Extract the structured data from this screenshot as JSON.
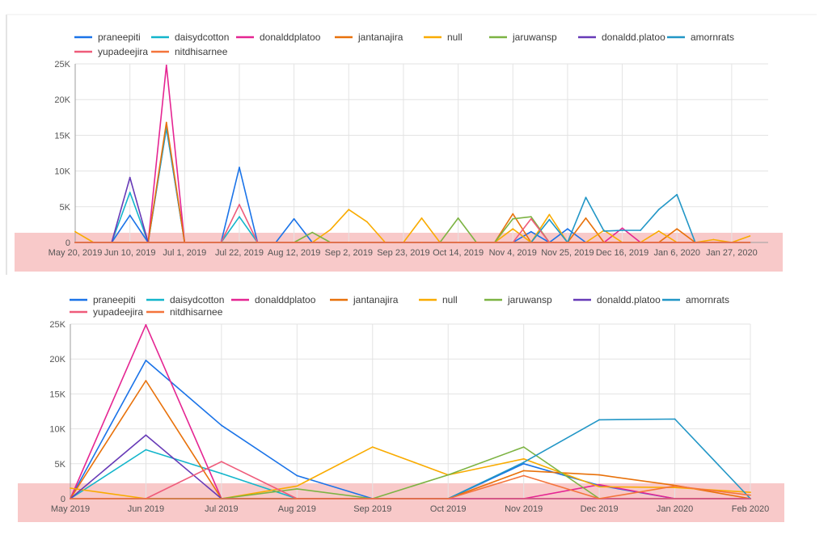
{
  "colors": {
    "praneepiti": "#1a73e8",
    "daisydcotton": "#12b5cb",
    "donalddplatoo": "#e52592",
    "jantanajira": "#e8710a",
    "null": "#f9ab00",
    "jaruwansp": "#7cb342",
    "donaldd.platoo": "#673ab7",
    "amornrats": "#2196c6",
    "yupadeejira": "#ef5b7a",
    "nitdhisarnee": "#f4743b",
    "highlight": "#f8c9c9",
    "grid": "#e3e3e3",
    "axis": "#9e9e9e",
    "text": "#555555"
  },
  "legend": [
    "praneepiti",
    "daisydcotton",
    "donalddplatoo",
    "jantanajira",
    "null",
    "jaruwansp",
    "donaldd.platoo",
    "amornrats",
    "yupadeejira",
    "nitdhisarnee"
  ],
  "chart_data": [
    {
      "type": "line",
      "title": "",
      "xlabel": "",
      "ylabel": "",
      "ylim": [
        0,
        25000
      ],
      "yticks": [
        "0",
        "5K",
        "10K",
        "15K",
        "20K",
        "25K"
      ],
      "grid": true,
      "legend_position": "top",
      "x_ticks": [
        "May 20, 2019",
        "Jun 10, 2019",
        "Jul 1, 2019",
        "Jul 22, 2019",
        "Aug 12, 2019",
        "Sep 2, 2019",
        "Sep 23, 2019",
        "Oct 14, 2019",
        "Nov 4, 2019",
        "Nov 25, 2019",
        "Dec 16, 2019",
        "Jan 6, 2020",
        "Jan 27, 2020"
      ],
      "x": [
        "2019-05-20",
        "2019-05-27",
        "2019-06-03",
        "2019-06-10",
        "2019-06-17",
        "2019-06-24",
        "2019-07-01",
        "2019-07-08",
        "2019-07-15",
        "2019-07-22",
        "2019-07-29",
        "2019-08-05",
        "2019-08-12",
        "2019-08-19",
        "2019-08-26",
        "2019-09-02",
        "2019-09-09",
        "2019-09-16",
        "2019-09-23",
        "2019-09-30",
        "2019-10-07",
        "2019-10-14",
        "2019-10-21",
        "2019-10-28",
        "2019-11-04",
        "2019-11-11",
        "2019-11-18",
        "2019-11-25",
        "2019-12-02",
        "2019-12-09",
        "2019-12-16",
        "2019-12-23",
        "2019-12-30",
        "2020-01-06",
        "2020-01-13",
        "2020-01-20",
        "2020-01-27",
        "2020-02-03"
      ],
      "series": [
        {
          "name": "praneepiti",
          "values": [
            0,
            0,
            0,
            3800,
            0,
            16000,
            0,
            0,
            0,
            10500,
            0,
            0,
            3300,
            0,
            0,
            0,
            0,
            0,
            0,
            0,
            0,
            0,
            0,
            0,
            0,
            1500,
            0,
            1900,
            0,
            0,
            0,
            0,
            0,
            0,
            0,
            0,
            0,
            0
          ]
        },
        {
          "name": "daisydcotton",
          "values": [
            0,
            0,
            0,
            7000,
            0,
            16200,
            0,
            0,
            0,
            3600,
            0,
            0,
            0,
            0,
            0,
            0,
            0,
            0,
            0,
            0,
            0,
            0,
            0,
            0,
            0,
            0,
            0,
            0,
            0,
            0,
            0,
            0,
            0,
            0,
            0,
            0,
            0,
            0
          ]
        },
        {
          "name": "donalddplatoo",
          "values": [
            0,
            0,
            0,
            0,
            0,
            24800,
            0,
            0,
            0,
            0,
            0,
            0,
            0,
            0,
            0,
            0,
            0,
            0,
            0,
            0,
            0,
            0,
            0,
            0,
            0,
            0,
            0,
            0,
            0,
            0,
            2000,
            0,
            0,
            0,
            0,
            0,
            0,
            0
          ]
        },
        {
          "name": "jantanajira",
          "values": [
            0,
            0,
            0,
            0,
            0,
            16800,
            0,
            0,
            0,
            0,
            0,
            0,
            0,
            0,
            0,
            0,
            0,
            0,
            0,
            0,
            0,
            0,
            0,
            0,
            4000,
            0,
            0,
            0,
            3400,
            0,
            0,
            0,
            0,
            1900,
            0,
            0,
            0,
            0
          ]
        },
        {
          "name": "null",
          "values": [
            1500,
            0,
            0,
            0,
            0,
            0,
            0,
            0,
            0,
            0,
            0,
            0,
            0,
            0,
            1800,
            4600,
            2900,
            0,
            0,
            3400,
            0,
            0,
            0,
            0,
            1900,
            0,
            3900,
            0,
            0,
            1700,
            0,
            0,
            1600,
            0,
            0,
            400,
            0,
            900
          ]
        },
        {
          "name": "jaruwansp",
          "values": [
            0,
            0,
            0,
            0,
            0,
            0,
            0,
            0,
            0,
            0,
            0,
            0,
            0,
            1400,
            0,
            0,
            0,
            0,
            0,
            0,
            0,
            3400,
            0,
            0,
            3300,
            3600,
            0,
            0,
            0,
            0,
            0,
            0,
            0,
            0,
            0,
            0,
            0,
            0
          ]
        },
        {
          "name": "donaldd.platoo",
          "values": [
            0,
            0,
            0,
            9100,
            0,
            0,
            0,
            0,
            0,
            0,
            0,
            0,
            0,
            0,
            0,
            0,
            0,
            0,
            0,
            0,
            0,
            0,
            0,
            0,
            0,
            0,
            0,
            0,
            0,
            0,
            0,
            0,
            0,
            0,
            0,
            0,
            0,
            0
          ]
        },
        {
          "name": "amornrats",
          "values": [
            0,
            0,
            0,
            0,
            0,
            0,
            0,
            0,
            0,
            0,
            0,
            0,
            0,
            0,
            0,
            0,
            0,
            0,
            0,
            0,
            0,
            0,
            0,
            0,
            0,
            0,
            3200,
            0,
            6300,
            1600,
            1700,
            1700,
            4600,
            6700,
            0,
            0,
            0,
            0
          ]
        },
        {
          "name": "yupadeejira",
          "values": [
            0,
            0,
            0,
            0,
            0,
            0,
            0,
            0,
            0,
            5300,
            0,
            0,
            0,
            0,
            0,
            0,
            0,
            0,
            0,
            0,
            0,
            0,
            0,
            0,
            0,
            3300,
            0,
            0,
            0,
            0,
            0,
            0,
            0,
            0,
            0,
            0,
            0,
            0
          ]
        },
        {
          "name": "nitdhisarnee",
          "values": [
            0,
            0,
            0,
            0,
            0,
            0,
            0,
            0,
            0,
            0,
            0,
            0,
            0,
            0,
            0,
            0,
            0,
            0,
            0,
            0,
            0,
            0,
            0,
            0,
            0,
            0,
            0,
            0,
            0,
            0,
            0,
            0,
            0,
            0,
            0,
            0,
            0,
            0
          ]
        }
      ]
    },
    {
      "type": "line",
      "title": "",
      "xlabel": "",
      "ylabel": "",
      "ylim": [
        0,
        25000
      ],
      "yticks": [
        "0",
        "5K",
        "10K",
        "15K",
        "20K",
        "25K"
      ],
      "grid": true,
      "legend_position": "top",
      "categories": [
        "May 2019",
        "Jun 2019",
        "Jul 2019",
        "Aug 2019",
        "Sep 2019",
        "Oct 2019",
        "Nov 2019",
        "Dec 2019",
        "Jan 2020",
        "Feb 2020"
      ],
      "series": [
        {
          "name": "praneepiti",
          "values": [
            0,
            19800,
            10500,
            3300,
            0,
            0,
            5000,
            1900,
            0,
            0
          ]
        },
        {
          "name": "daisydcotton",
          "values": [
            0,
            7000,
            3600,
            0,
            0,
            0,
            0,
            0,
            0,
            0
          ]
        },
        {
          "name": "donalddplatoo",
          "values": [
            0,
            24900,
            0,
            0,
            0,
            0,
            0,
            2000,
            0,
            0
          ]
        },
        {
          "name": "jantanajira",
          "values": [
            0,
            16900,
            0,
            0,
            0,
            0,
            4000,
            3400,
            1900,
            0
          ]
        },
        {
          "name": "null",
          "values": [
            1500,
            0,
            0,
            1800,
            7400,
            3400,
            5700,
            1700,
            1600,
            900
          ]
        },
        {
          "name": "jaruwansp",
          "values": [
            0,
            0,
            0,
            1400,
            0,
            3400,
            7400,
            0,
            0,
            0
          ]
        },
        {
          "name": "donaldd.platoo",
          "values": [
            0,
            9100,
            0,
            0,
            0,
            0,
            0,
            0,
            0,
            0
          ]
        },
        {
          "name": "amornrats",
          "values": [
            0,
            0,
            0,
            0,
            0,
            0,
            5200,
            11300,
            11400,
            0
          ]
        },
        {
          "name": "yupadeejira",
          "values": [
            0,
            0,
            5300,
            0,
            0,
            0,
            0,
            0,
            0,
            0
          ]
        },
        {
          "name": "nitdhisarnee",
          "values": [
            0,
            0,
            0,
            0,
            0,
            0,
            3300,
            0,
            1800,
            500
          ]
        }
      ]
    }
  ]
}
